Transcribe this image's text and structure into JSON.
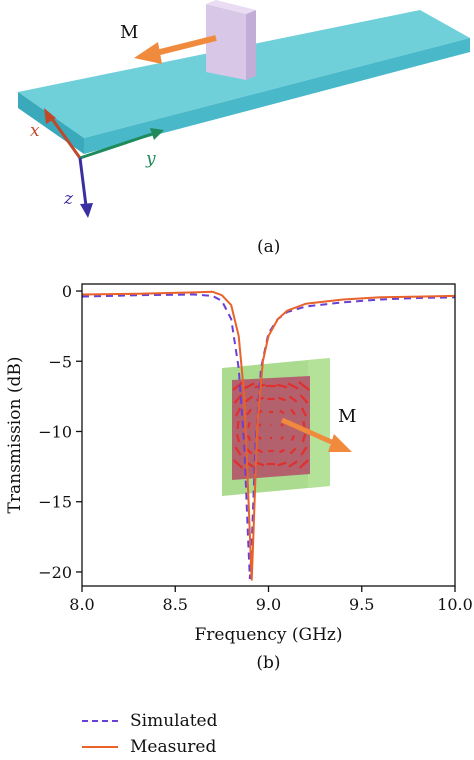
{
  "panel_a": {
    "magnetization_label": "M",
    "axis_x": "x",
    "axis_y": "y",
    "axis_z": "z",
    "caption": "(a)",
    "colors": {
      "substrate": "#6fd0da",
      "substrate_edge": "#3fb2c2",
      "resonator": "#d7c6e6",
      "arrow": "#f08a3c",
      "axis_x": "#c0492a",
      "axis_y": "#1f8a5a",
      "axis_z": "#3a2ea0"
    }
  },
  "panel_b": {
    "caption": "(b)",
    "inset_label": "M"
  },
  "chart_data": {
    "type": "line",
    "xlabel": "Frequency (GHz)",
    "ylabel": "Transmission (dB)",
    "xlim": [
      8.0,
      10.0
    ],
    "ylim": [
      -21,
      0.5
    ],
    "xticks": [
      "8.0",
      "8.5",
      "9.0",
      "9.5",
      "10.0"
    ],
    "yticks": [
      "0",
      "−5",
      "−10",
      "−15",
      "−20"
    ],
    "grid": false,
    "legend_position": "bottom-left, below plot",
    "series": [
      {
        "name": "Simulated",
        "style": "dashed",
        "color": "#6a3fd6",
        "x": [
          8.0,
          8.3,
          8.6,
          8.7,
          8.75,
          8.8,
          8.84,
          8.87,
          8.89,
          8.9,
          8.91,
          8.93,
          8.96,
          9.0,
          9.05,
          9.1,
          9.2,
          9.4,
          9.6,
          9.8,
          10.0
        ],
        "y": [
          -0.4,
          -0.3,
          -0.25,
          -0.35,
          -0.7,
          -2.0,
          -5.5,
          -11.0,
          -17.5,
          -20.5,
          -18.0,
          -11.0,
          -5.5,
          -3.0,
          -2.0,
          -1.5,
          -1.1,
          -0.8,
          -0.6,
          -0.5,
          -0.45
        ]
      },
      {
        "name": "Measured",
        "style": "solid",
        "color": "#e8622a",
        "x": [
          8.0,
          8.3,
          8.6,
          8.7,
          8.75,
          8.8,
          8.84,
          8.87,
          8.89,
          8.91,
          8.92,
          8.94,
          8.97,
          9.0,
          9.05,
          9.1,
          9.2,
          9.4,
          9.6,
          9.8,
          10.0
        ],
        "y": [
          -0.25,
          -0.2,
          -0.1,
          -0.05,
          -0.3,
          -1.0,
          -3.2,
          -7.5,
          -14.0,
          -20.6,
          -17.0,
          -9.5,
          -5.0,
          -3.2,
          -2.0,
          -1.4,
          -0.9,
          -0.6,
          -0.45,
          -0.4,
          -0.35
        ]
      }
    ]
  }
}
